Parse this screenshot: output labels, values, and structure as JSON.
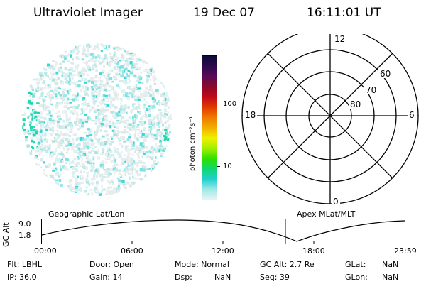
{
  "header": {
    "instrument": "Ultraviolet Imager",
    "date": "19 Dec 07",
    "time": "16:11:01 UT"
  },
  "colorbar": {
    "label": "photon cm⁻²s⁻¹",
    "ticks": [
      "100",
      "10"
    ],
    "stops": [
      "#0b0b3a",
      "#2a0a4a",
      "#5a0a5a",
      "#8a0a2a",
      "#c00a1a",
      "#e03a00",
      "#f07a00",
      "#f0b000",
      "#f0f000",
      "#a0f000",
      "#30e000",
      "#10d870",
      "#20d0d0",
      "#a0e8e8",
      "#e8f4f4"
    ]
  },
  "polar": {
    "labels": {
      "top": "12",
      "left": "18",
      "right": "6",
      "bottom": "0"
    },
    "rings": [
      "60",
      "70",
      "80"
    ]
  },
  "timeline": {
    "y_axis_label": "GC Alt",
    "y_ticks": [
      "9.0",
      "1.8"
    ],
    "left_title": "Geographic Lat/Lon",
    "right_title": "Apex MLat/MLT",
    "x_ticks": [
      "00:00",
      "06:00",
      "12:00",
      "18:00",
      "23:59"
    ],
    "cursor_color": "#c00000"
  },
  "status": {
    "flt": "Flt: LBHL",
    "ip": "IP: 36.0",
    "door": "Door: Open",
    "gain": "Gain: 14",
    "mode": "Mode: Normal",
    "dsp_label": "Dsp:",
    "dsp_value": "NaN",
    "gcalt": "GC Alt: 2.7 Re",
    "seq": "Seq: 39",
    "glat_label": "GLat:",
    "glat_value": "NaN",
    "glon_label": "GLon:",
    "glon_value": "NaN"
  }
}
